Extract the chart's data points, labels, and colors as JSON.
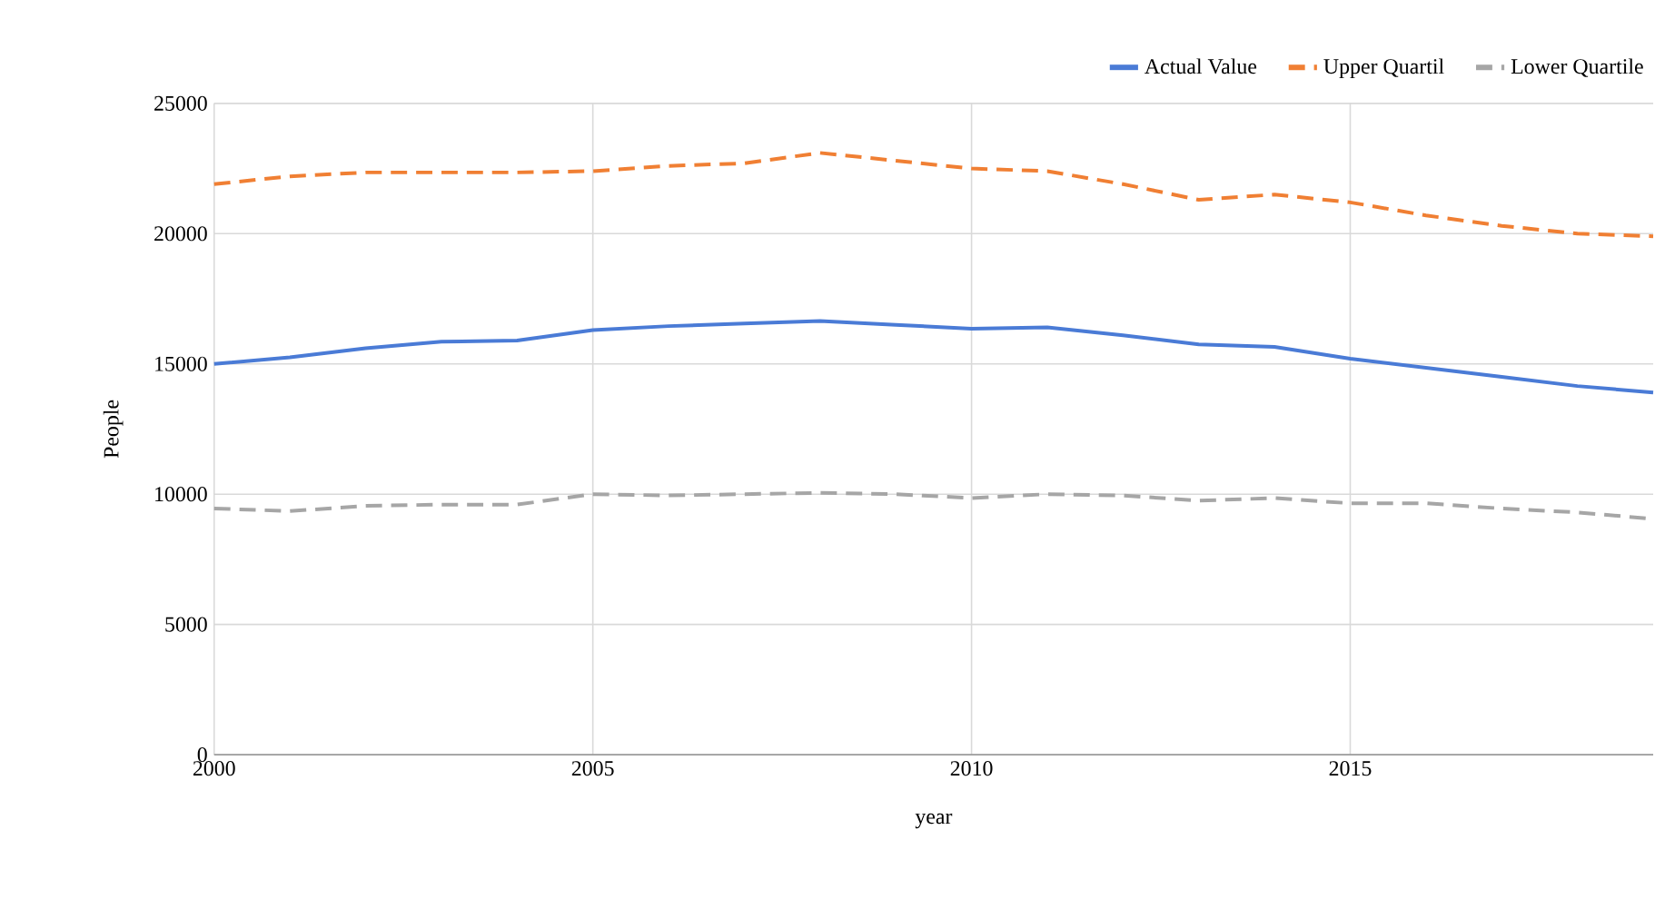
{
  "chart_data": {
    "type": "line",
    "xlabel": "year",
    "ylabel": "People",
    "x": [
      2000,
      2001,
      2002,
      2003,
      2004,
      2005,
      2006,
      2007,
      2008,
      2009,
      2010,
      2011,
      2012,
      2013,
      2014,
      2015,
      2016,
      2017,
      2018,
      2019
    ],
    "series": [
      {
        "name": "Actual Value",
        "color": "#4a7bd6",
        "line_style": "solid",
        "values": [
          15000,
          15250,
          15600,
          15850,
          15900,
          16300,
          16450,
          16550,
          16650,
          16500,
          16350,
          16400,
          16100,
          15750,
          15650,
          15200,
          14850,
          14500,
          14150,
          13900
        ]
      },
      {
        "name": "Upper Quartil",
        "color": "#f07f33",
        "line_style": "dashed",
        "values": [
          21900,
          22200,
          22350,
          22350,
          22350,
          22400,
          22600,
          22700,
          23100,
          22800,
          22500,
          22400,
          21900,
          21300,
          21500,
          21200,
          20700,
          20300,
          20000,
          19900
        ]
      },
      {
        "name": "Lower Quartile",
        "color": "#a6a6a6",
        "line_style": "dashed",
        "values": [
          9450,
          9350,
          9550,
          9600,
          9600,
          10000,
          9950,
          10000,
          10050,
          10000,
          9850,
          10000,
          9950,
          9750,
          9850,
          9650,
          9650,
          9450,
          9300,
          9050
        ]
      }
    ],
    "xlim": [
      2000,
      2019
    ],
    "xticks": [
      2000,
      2005,
      2010,
      2015
    ],
    "ylim": [
      0,
      25000
    ],
    "yticks": [
      0,
      5000,
      10000,
      15000,
      20000,
      25000
    ],
    "grid": true,
    "legend": "top right",
    "marker": "none"
  }
}
